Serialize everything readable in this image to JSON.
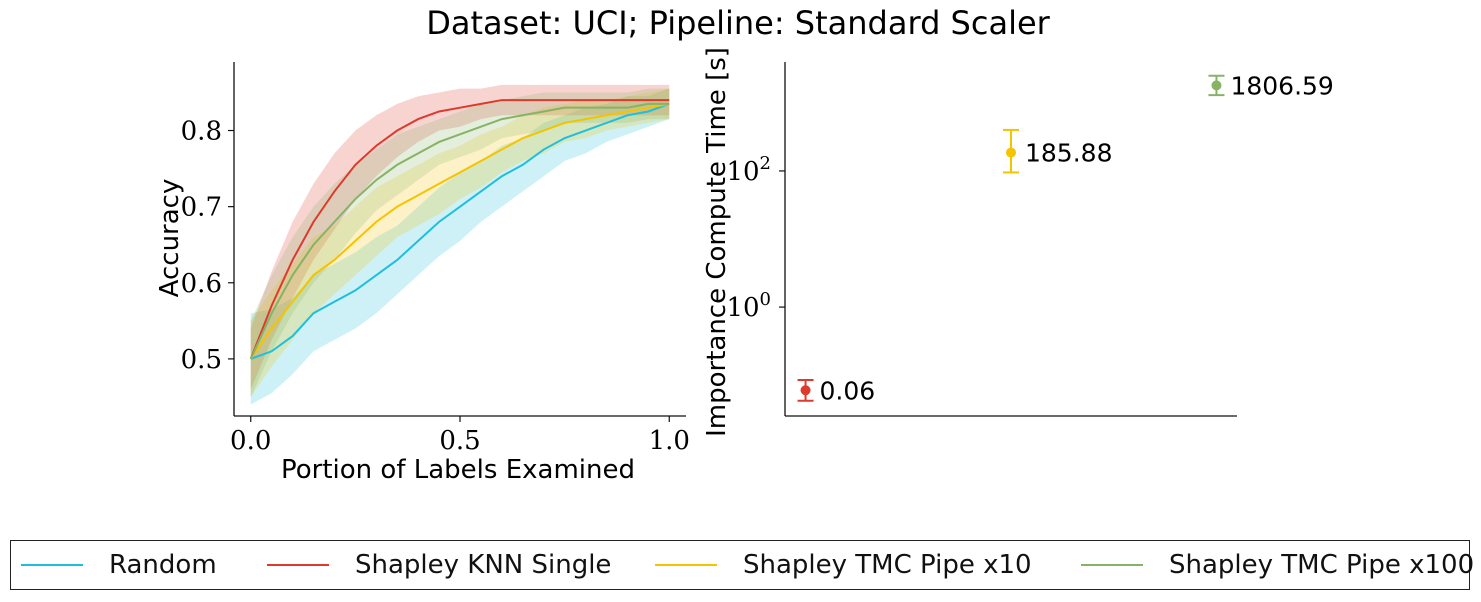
{
  "figure_title": "Dataset: UCI; Pipeline: Standard Scaler",
  "colors": {
    "random": "#1fbfdc",
    "knn": "#dd3a2c",
    "tmc10": "#f5c300",
    "tmc100": "#86b364"
  },
  "legend": {
    "items": [
      {
        "label": "Random",
        "color": "#1fbfdc"
      },
      {
        "label": "Shapley KNN Single",
        "color": "#dd3a2c"
      },
      {
        "label": "Shapley TMC Pipe x10",
        "color": "#f5c300"
      },
      {
        "label": "Shapley TMC Pipe x100",
        "color": "#86b364"
      }
    ]
  },
  "chart_data": [
    {
      "type": "line",
      "xlabel": "Portion of Labels Examined",
      "ylabel": "Accuracy",
      "xlim": [
        -0.04,
        1.04
      ],
      "ylim": [
        0.425,
        0.89
      ],
      "xticks": [
        0.0,
        0.5,
        1.0
      ],
      "xtick_labels": [
        "0.0",
        "0.5",
        "1.0"
      ],
      "yticks": [
        0.5,
        0.6,
        0.7,
        0.8
      ],
      "ytick_labels": [
        "0.5",
        "0.6",
        "0.7",
        "0.8"
      ],
      "series": [
        {
          "name": "Random",
          "color": "#1fbfdc",
          "x": [
            0.0,
            0.05,
            0.1,
            0.15,
            0.2,
            0.25,
            0.3,
            0.35,
            0.4,
            0.45,
            0.5,
            0.55,
            0.6,
            0.65,
            0.7,
            0.75,
            0.8,
            0.85,
            0.9,
            0.95,
            1.0
          ],
          "y": [
            0.5,
            0.51,
            0.53,
            0.56,
            0.575,
            0.59,
            0.61,
            0.63,
            0.655,
            0.68,
            0.7,
            0.72,
            0.74,
            0.755,
            0.775,
            0.79,
            0.8,
            0.81,
            0.82,
            0.825,
            0.835
          ],
          "band": [
            0.06,
            0.055,
            0.05,
            0.05,
            0.05,
            0.05,
            0.05,
            0.045,
            0.045,
            0.045,
            0.045,
            0.04,
            0.04,
            0.035,
            0.035,
            0.03,
            0.03,
            0.025,
            0.025,
            0.02,
            0.02
          ]
        },
        {
          "name": "Shapley KNN Single",
          "color": "#dd3a2c",
          "x": [
            0.0,
            0.05,
            0.1,
            0.15,
            0.2,
            0.25,
            0.3,
            0.35,
            0.4,
            0.45,
            0.5,
            0.55,
            0.6,
            0.65,
            0.7,
            0.75,
            0.8,
            0.85,
            0.9,
            0.95,
            1.0
          ],
          "y": [
            0.5,
            0.57,
            0.63,
            0.68,
            0.72,
            0.755,
            0.78,
            0.8,
            0.815,
            0.825,
            0.83,
            0.835,
            0.84,
            0.84,
            0.84,
            0.84,
            0.84,
            0.84,
            0.84,
            0.84,
            0.84
          ],
          "band": [
            0.04,
            0.045,
            0.05,
            0.05,
            0.05,
            0.045,
            0.04,
            0.035,
            0.03,
            0.025,
            0.025,
            0.02,
            0.02,
            0.02,
            0.02,
            0.02,
            0.02,
            0.02,
            0.02,
            0.02,
            0.02
          ]
        },
        {
          "name": "Shapley TMC Pipe x10",
          "color": "#f5c300",
          "x": [
            0.0,
            0.05,
            0.1,
            0.15,
            0.2,
            0.25,
            0.3,
            0.35,
            0.4,
            0.45,
            0.5,
            0.55,
            0.6,
            0.65,
            0.7,
            0.75,
            0.8,
            0.85,
            0.9,
            0.95,
            1.0
          ],
          "y": [
            0.5,
            0.54,
            0.575,
            0.61,
            0.63,
            0.655,
            0.68,
            0.7,
            0.715,
            0.73,
            0.745,
            0.76,
            0.775,
            0.79,
            0.8,
            0.81,
            0.815,
            0.82,
            0.825,
            0.83,
            0.835
          ],
          "band": [
            0.05,
            0.05,
            0.05,
            0.05,
            0.045,
            0.045,
            0.045,
            0.04,
            0.04,
            0.04,
            0.035,
            0.035,
            0.03,
            0.03,
            0.03,
            0.025,
            0.025,
            0.02,
            0.02,
            0.02,
            0.02
          ]
        },
        {
          "name": "Shapley TMC Pipe x100",
          "color": "#86b364",
          "x": [
            0.0,
            0.05,
            0.1,
            0.15,
            0.2,
            0.25,
            0.3,
            0.35,
            0.4,
            0.45,
            0.5,
            0.55,
            0.6,
            0.65,
            0.7,
            0.75,
            0.8,
            0.85,
            0.9,
            0.95,
            1.0
          ],
          "y": [
            0.5,
            0.56,
            0.61,
            0.65,
            0.68,
            0.71,
            0.735,
            0.755,
            0.77,
            0.785,
            0.795,
            0.805,
            0.815,
            0.82,
            0.825,
            0.83,
            0.83,
            0.83,
            0.83,
            0.835,
            0.835
          ],
          "band": [
            0.05,
            0.05,
            0.05,
            0.05,
            0.05,
            0.045,
            0.04,
            0.04,
            0.035,
            0.03,
            0.03,
            0.03,
            0.025,
            0.025,
            0.025,
            0.02,
            0.02,
            0.02,
            0.02,
            0.02,
            0.02
          ]
        }
      ]
    },
    {
      "type": "scatter",
      "xlabel": "",
      "ylabel": "Importance Compute Time [s]",
      "yscale": "log",
      "ylim_log10": [
        -1.6,
        3.6
      ],
      "yticks": [
        1,
        100
      ],
      "ytick_labels": [
        {
          "base": "10",
          "exp": "0"
        },
        {
          "base": "10",
          "exp": "2"
        }
      ],
      "xlim": [
        -0.1,
        2.1
      ],
      "points": [
        {
          "name": "Shapley KNN Single",
          "x": 0,
          "value": 0.06,
          "label": "0.06",
          "err_low": 0.042,
          "err_high": 0.085,
          "color": "#dd3a2c"
        },
        {
          "name": "Shapley TMC Pipe x10",
          "x": 1,
          "value": 185.88,
          "label": "185.88",
          "err_low": 95,
          "err_high": 400,
          "color": "#f5c300"
        },
        {
          "name": "Shapley TMC Pipe x100",
          "x": 2,
          "value": 1806.59,
          "label": "1806.59",
          "err_low": 1300,
          "err_high": 2500,
          "color": "#86b364"
        }
      ]
    }
  ]
}
